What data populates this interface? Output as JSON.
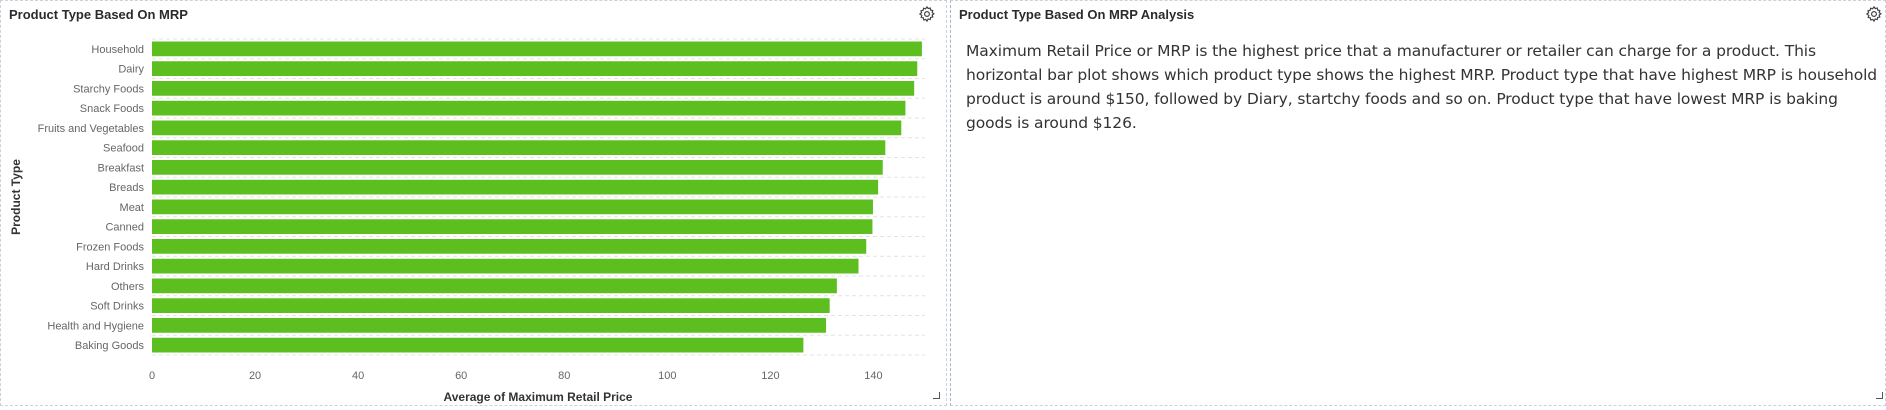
{
  "left_panel": {
    "title": "Product Type Based On MRP",
    "settings_icon": "gear-icon"
  },
  "right_panel": {
    "title": "Product Type Based On MRP Analysis",
    "settings_icon": "gear-icon",
    "body": "Maximum Retail Price or MRP is the highest price that a manufacturer or retailer can charge for a product. This horizontal bar plot shows which product type shows the highest MRP. Product type that have highest MRP is household product is around $150, followed by Diary, startchy foods and so on. Product type that have lowest MRP is baking goods is around $126."
  },
  "colors": {
    "bar": "#5cbf1f",
    "grid": "#e3e3e3",
    "border": "#c9d2dc"
  },
  "chart_data": {
    "type": "bar",
    "orientation": "horizontal",
    "categories": [
      "Household",
      "Dairy",
      "Starchy Foods",
      "Snack Foods",
      "Fruits and Vegetables",
      "Seafood",
      "Breakfast",
      "Breads",
      "Meat",
      "Canned",
      "Frozen Foods",
      "Hard Drinks",
      "Others",
      "Soft Drinks",
      "Health and Hygiene",
      "Baking Goods"
    ],
    "values": [
      149.4,
      148.5,
      147.9,
      146.2,
      145.4,
      142.3,
      141.8,
      140.9,
      139.9,
      139.8,
      138.6,
      137.1,
      132.9,
      131.5,
      130.8,
      126.4
    ],
    "xlabel": "Average of Maximum Retail Price",
    "ylabel": "Product Type",
    "xlim": [
      0,
      150
    ],
    "xticks": [
      0,
      20,
      40,
      60,
      80,
      100,
      120,
      140
    ],
    "grid": true,
    "legend": "none"
  }
}
